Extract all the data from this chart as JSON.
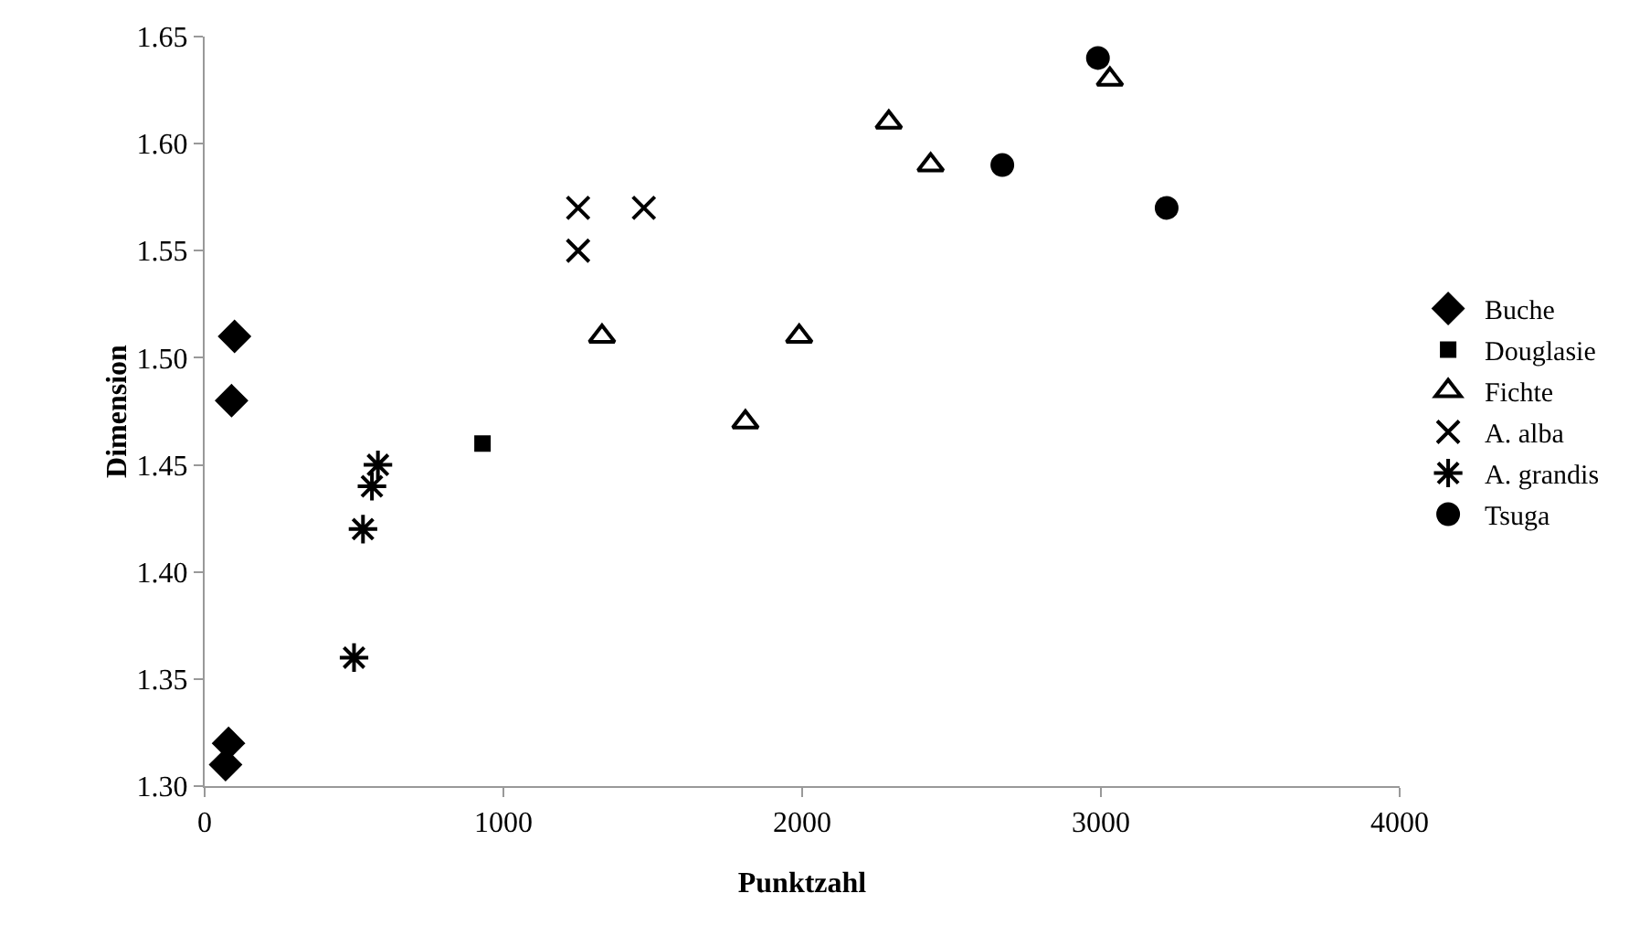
{
  "chart_data": {
    "type": "scatter",
    "xlabel": "Punktzahl",
    "ylabel": "Dimension",
    "xlim": [
      0,
      4000
    ],
    "xticks": [
      0,
      1000,
      2000,
      3000,
      4000
    ],
    "ylim": [
      1.3,
      1.65
    ],
    "yticks": [
      {
        "value": 1.3,
        "label": "1.30"
      },
      {
        "value": 1.35,
        "label": "1.35"
      },
      {
        "value": 1.4,
        "label": "1.40"
      },
      {
        "value": 1.45,
        "label": "1.45"
      },
      {
        "value": 1.5,
        "label": "1.50"
      },
      {
        "value": 1.55,
        "label": "1.55"
      },
      {
        "value": 1.6,
        "label": "1.60"
      },
      {
        "value": 1.65,
        "label": "1.65"
      }
    ],
    "grid": false,
    "legend": "right",
    "series": [
      {
        "name": "Buche",
        "color": "#000000",
        "marker": "diamond",
        "x": [
          100,
          90,
          80,
          70
        ],
        "values": [
          1.51,
          1.48,
          1.32,
          1.31
        ]
      },
      {
        "name": "Douglasie",
        "color": "#000000",
        "marker": "square",
        "x": [
          930
        ],
        "values": [
          1.46
        ]
      },
      {
        "name": "Fichte",
        "color": "#000000",
        "marker": "triangle",
        "x": [
          1330,
          1810,
          1990,
          2290,
          2430,
          3030
        ],
        "values": [
          1.51,
          1.47,
          1.51,
          1.61,
          1.59,
          1.63
        ]
      },
      {
        "name": "A. alba",
        "color": "#000000",
        "marker": "cross",
        "x": [
          1250,
          1250,
          1470
        ],
        "values": [
          1.57,
          1.55,
          1.57
        ]
      },
      {
        "name": "A. grandis",
        "color": "#000000",
        "x": [
          500,
          530,
          560,
          580
        ],
        "values": [
          1.36,
          1.42,
          1.44,
          1.45
        ]
      },
      {
        "name": "Tsuga",
        "color": "#000000",
        "marker": "circle",
        "x": [
          2670,
          2990,
          3220
        ],
        "values": [
          1.59,
          1.64,
          1.57
        ]
      }
    ]
  }
}
